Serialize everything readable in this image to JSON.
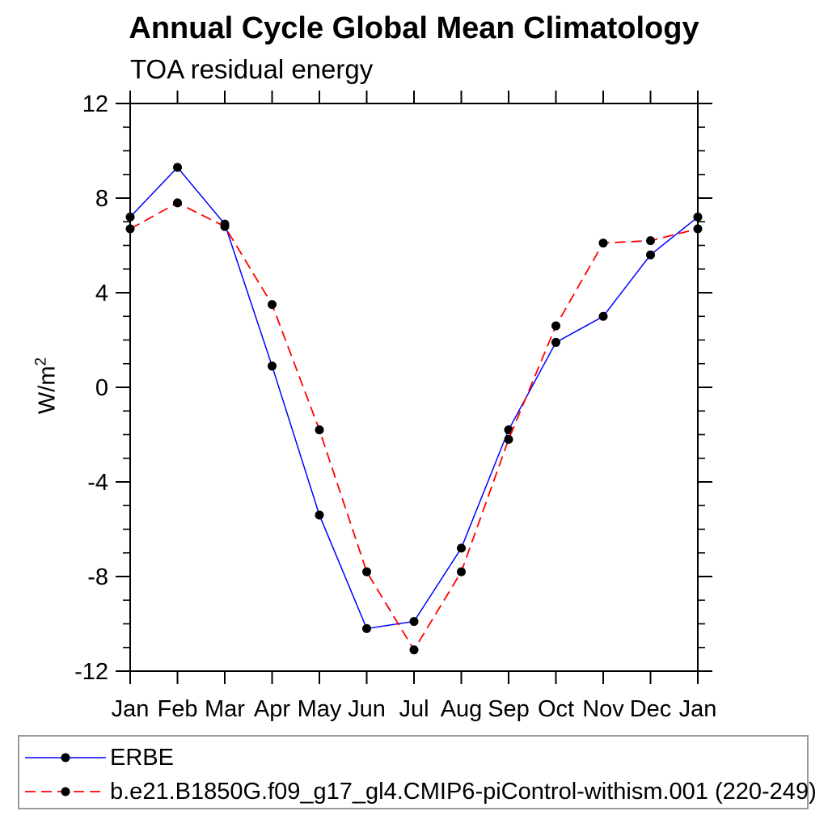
{
  "page": {
    "background": "#ffffff"
  },
  "chart_data": {
    "type": "line",
    "title": "Annual Cycle Global Mean Climatology",
    "subtitle": "TOA residual energy",
    "ylabel": "W/m",
    "ylabel_sup": "2",
    "xlabel": "",
    "categories": [
      "Jan",
      "Feb",
      "Mar",
      "Apr",
      "May",
      "Jun",
      "Jul",
      "Aug",
      "Sep",
      "Oct",
      "Nov",
      "Dec",
      "Jan"
    ],
    "ylim": [
      -12,
      12
    ],
    "y_major_ticks": [
      12,
      8,
      4,
      0,
      -4,
      -8,
      -12
    ],
    "y_minor_step": 1,
    "grid": false,
    "legend_position": "bottom-box",
    "axis_color": "#000000",
    "marker": {
      "shape": "circle",
      "color": "#000000",
      "radius": 5.5
    },
    "series": [
      {
        "name": "ERBE",
        "color": "#0000ff",
        "line_style": "solid",
        "values": [
          7.2,
          9.3,
          6.9,
          0.9,
          -5.4,
          -10.2,
          -9.9,
          -6.8,
          -1.8,
          1.9,
          3.0,
          5.6,
          7.2
        ]
      },
      {
        "name": "b.e21.B1850G.f09_g17_gl4.CMIP6-piControl-withism.001 (220-249)",
        "color": "#ff0000",
        "line_style": "dashed",
        "values": [
          6.7,
          7.8,
          6.8,
          3.5,
          -1.8,
          -7.8,
          -11.1,
          -7.8,
          -2.2,
          2.6,
          6.1,
          6.2,
          6.7
        ]
      }
    ]
  }
}
